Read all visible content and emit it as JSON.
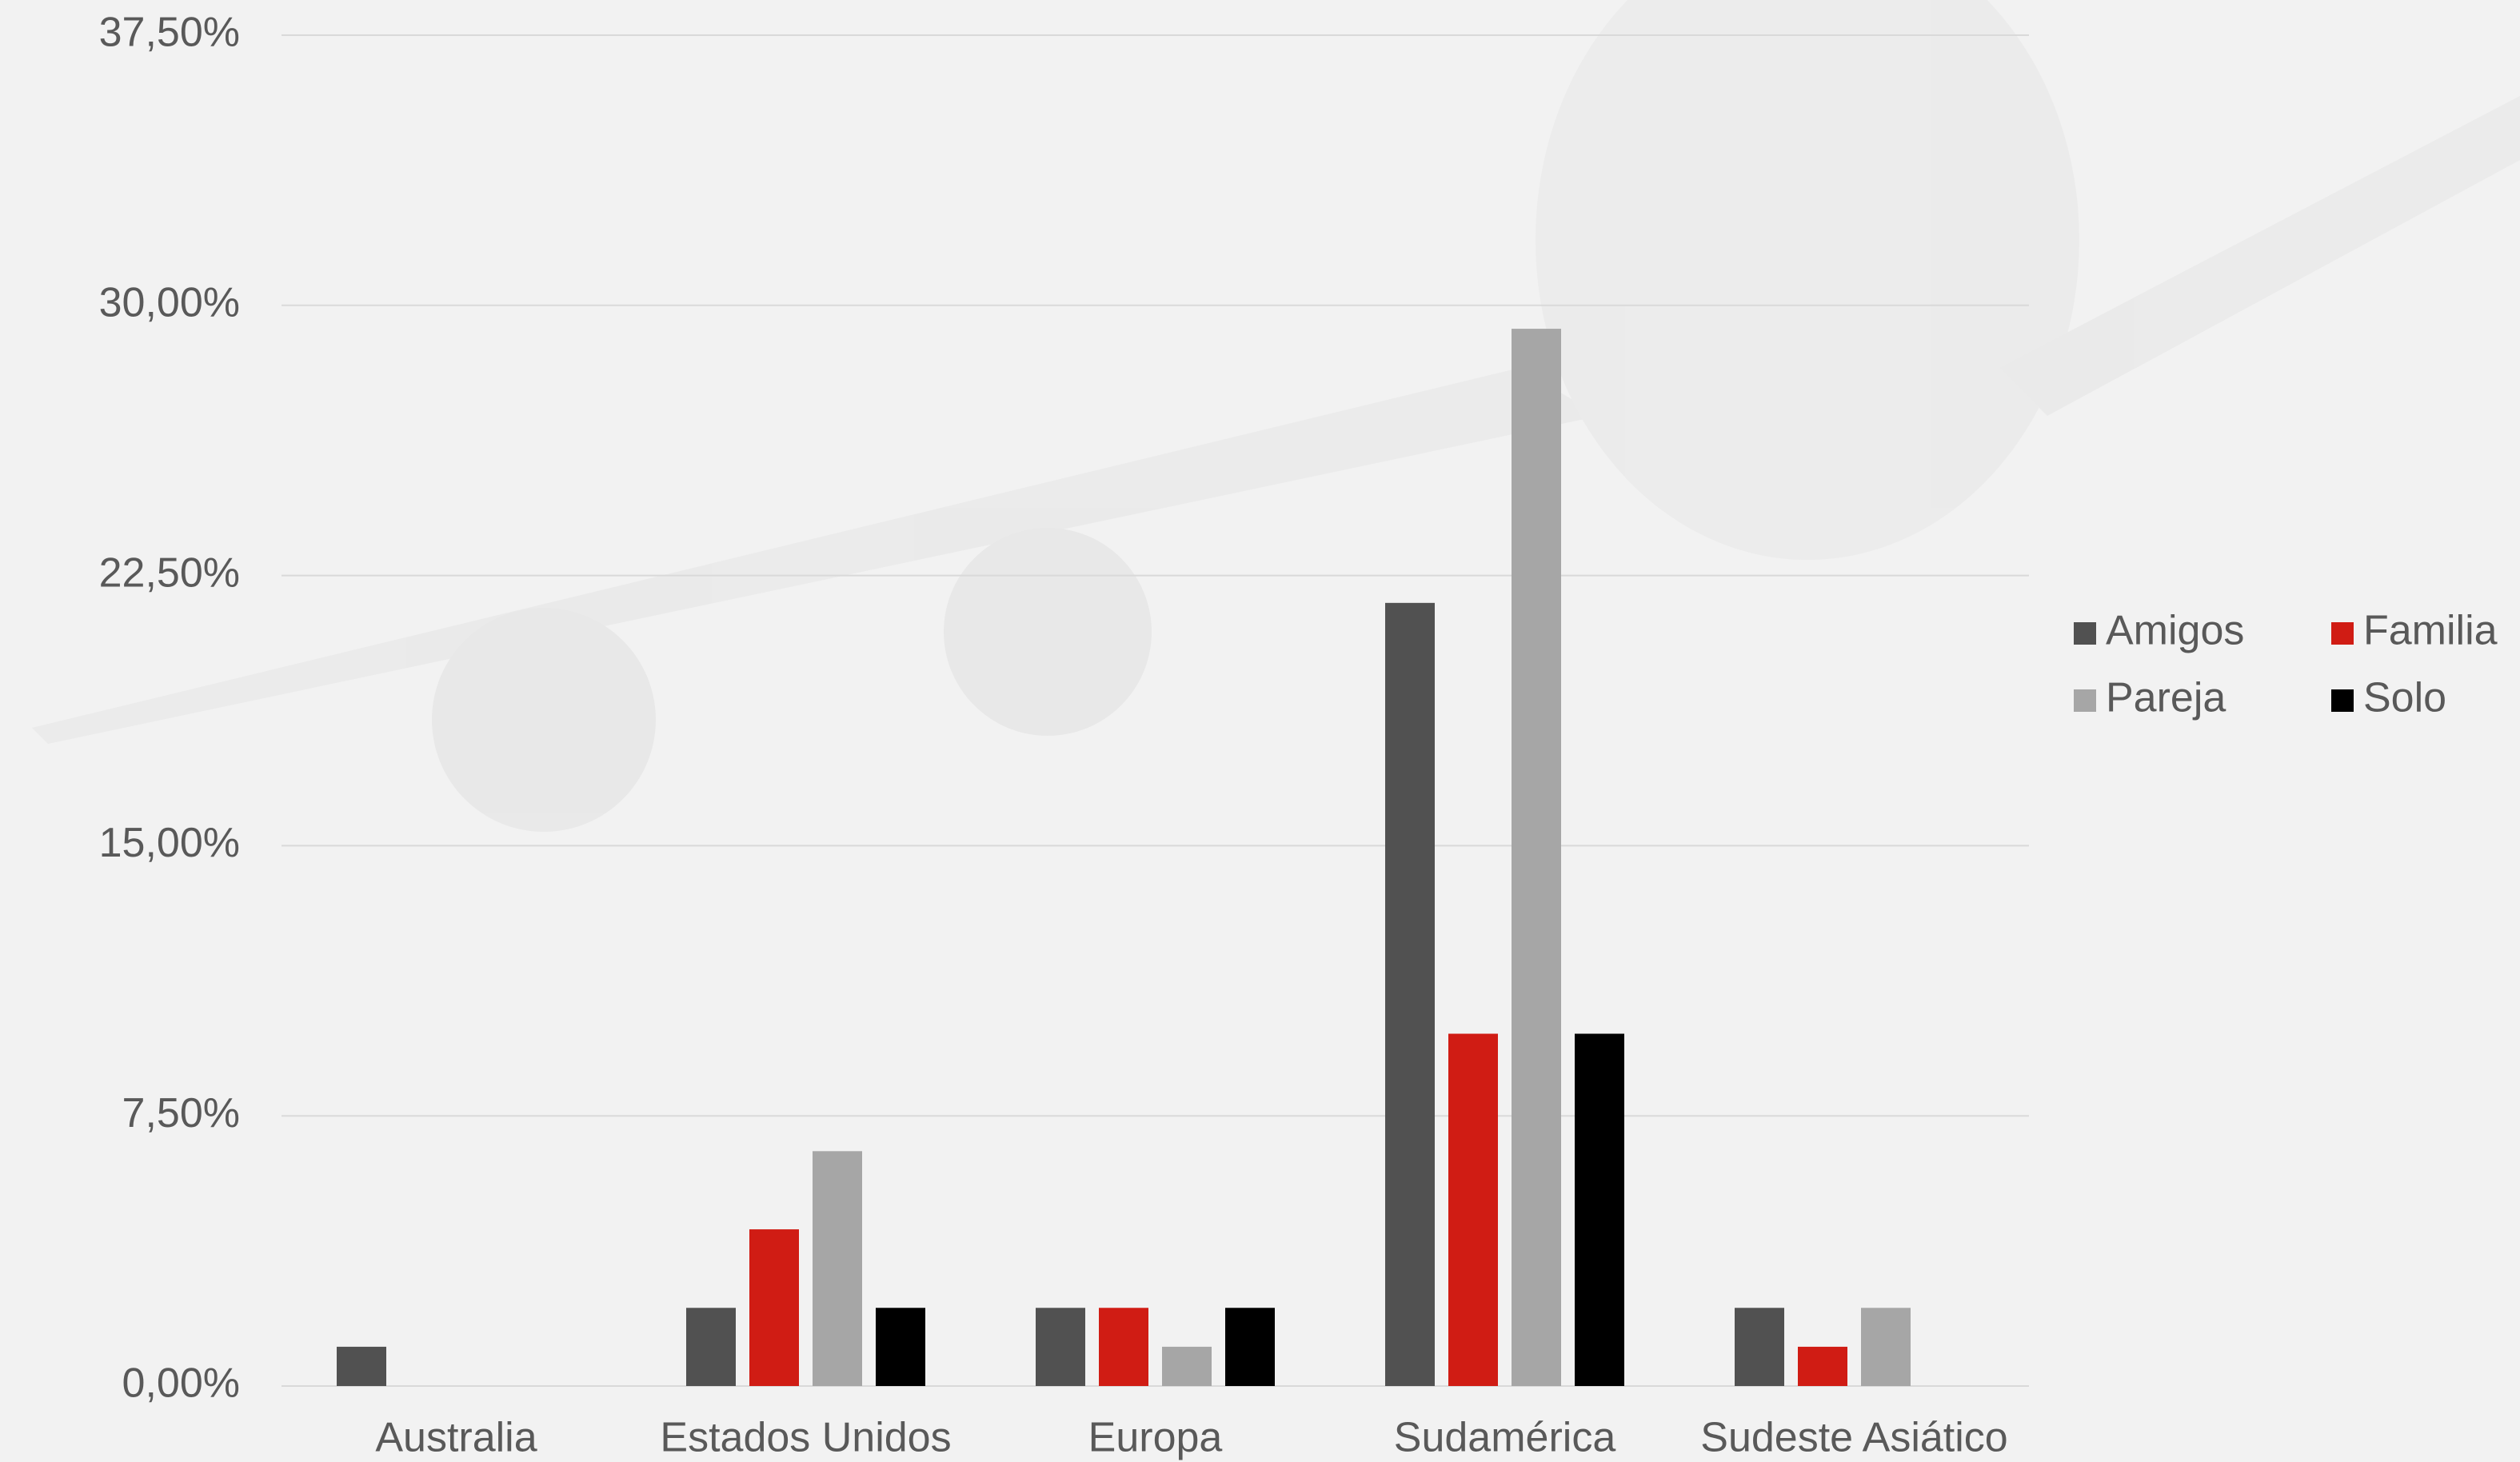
{
  "chart_data": {
    "type": "bar",
    "categories": [
      "Australia",
      "Estados Unidos",
      "Europa",
      "Sudamérica",
      "Sudeste Asiático"
    ],
    "series": [
      {
        "name": "Amigos",
        "color": "#515151",
        "values": [
          1.09,
          2.17,
          2.17,
          21.74,
          2.17
        ]
      },
      {
        "name": "Familia",
        "color": "#d01c14",
        "values": [
          0,
          4.35,
          2.17,
          9.78,
          1.09
        ]
      },
      {
        "name": "Pareja",
        "color": "#a6a6a6",
        "values": [
          0,
          6.52,
          1.09,
          29.35,
          2.17
        ]
      },
      {
        "name": "Solo",
        "color": "#000000",
        "values": [
          0,
          2.17,
          2.17,
          9.78,
          0
        ]
      }
    ],
    "ylim": [
      0,
      37.5
    ],
    "yticks": [
      {
        "value": 0,
        "label": "0,00%"
      },
      {
        "value": 7.5,
        "label": "7,50%"
      },
      {
        "value": 15,
        "label": "15,00%"
      },
      {
        "value": 22.5,
        "label": "22,50%"
      },
      {
        "value": 30,
        "label": "30,00%"
      },
      {
        "value": 37.5,
        "label": "37,50%"
      }
    ],
    "grid": true
  }
}
